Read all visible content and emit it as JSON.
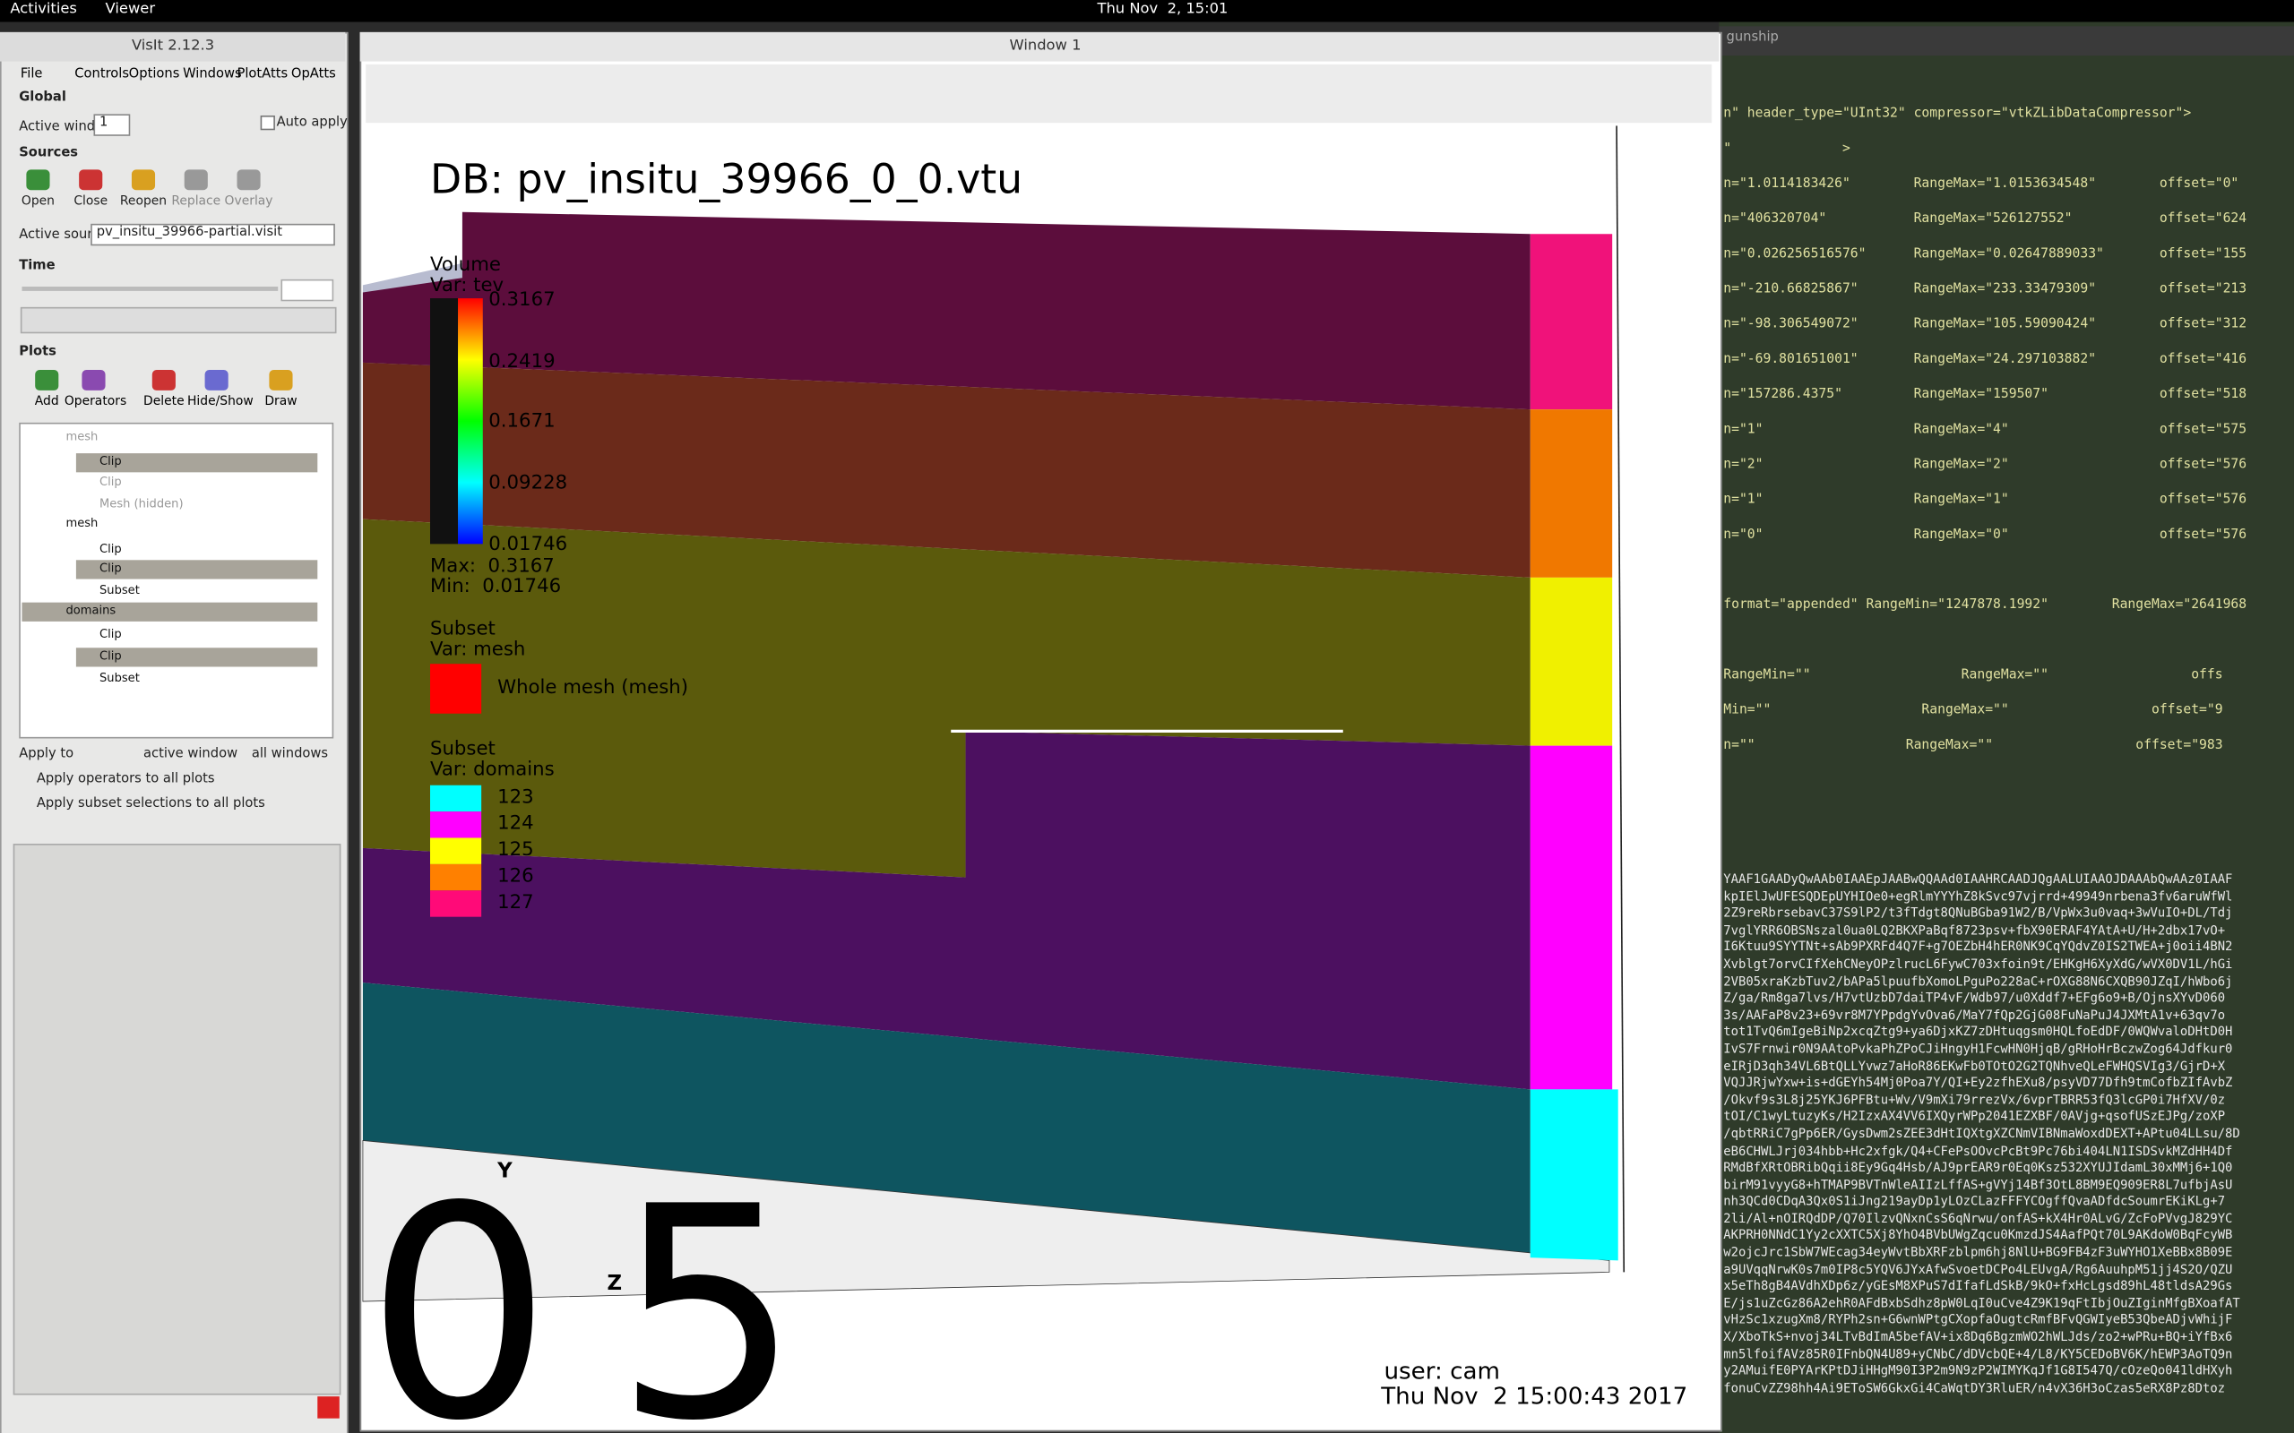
{
  "topbar": {
    "activities": "Activities",
    "app_menu": "Viewer",
    "clock": "Thu Nov  2, 15:01"
  },
  "control_panel": {
    "title": "VisIt 2.12.3",
    "menu": [
      "File",
      "Controls",
      "Options",
      "Windows",
      "PlotAtts",
      "OpAtts"
    ],
    "global_label": "Global",
    "active_window_label": "Active window",
    "active_window_value": "1",
    "auto_apply": "Auto apply",
    "sources_label": "Sources",
    "source_buttons": [
      "Open",
      "Close",
      "Reopen",
      "Replace",
      "Overlay"
    ],
    "active_source_label": "Active source",
    "active_source": "pv_insitu_39966-partial.visit",
    "time_label": "Time",
    "plots_label": "Plots",
    "plot_buttons": [
      "Add",
      "Operators",
      "Delete",
      "Hide/Show",
      "Draw"
    ],
    "plot_tree": [
      "mesh",
      "Clip",
      "Clip",
      "Mesh (hidden)",
      "mesh",
      "Clip",
      "Clip",
      "Subset",
      "domains",
      "Clip",
      "Clip",
      "Subset"
    ],
    "apply_to": "Apply to",
    "active_window": "active window",
    "all_windows": "all windows",
    "apply_ops": "Apply operators to all plots",
    "apply_subset": "Apply subset selections to all plots"
  },
  "viz_window": {
    "title": "Window 1",
    "db": "DB: pv_insitu_39966_0_0.vtu",
    "volume_legend": {
      "title": "Volume",
      "var": "Var: tev",
      "ticks": [
        "0.3167",
        "0.2419",
        "0.1671",
        "0.09228",
        "0.01746"
      ],
      "max": "Max:  0.3167",
      "min": "Min:  0.01746"
    },
    "mesh_legend": {
      "title": "Subset",
      "var": "Var: mesh",
      "item": "Whole mesh (mesh)"
    },
    "domain_legend": {
      "title": "Subset",
      "var": "Var: domains",
      "items": [
        "123",
        "124",
        "125",
        "126",
        "127"
      ],
      "colors": [
        "#00ffff",
        "#ff00ff",
        "#ffff00",
        "#ff8000",
        "#ff0a78"
      ]
    },
    "axis_y": "Y",
    "axis_z": "Z",
    "big_digits": [
      "0",
      "5"
    ],
    "user": "user: cam",
    "date": "Thu Nov  2 15:00:43 2017"
  },
  "terminal": {
    "title": "gunship",
    "lines": [
      "n\" header_type=\"UInt32\" compressor=\"vtkZLibDataCompressor\">",
      "\"              >",
      "n=\"1.0114183426\"        RangeMax=\"1.0153634548\"        offset=\"0\"",
      "n=\"406320704\"           RangeMax=\"526127552\"           offset=\"624",
      "n=\"0.026256516576\"      RangeMax=\"0.02647889033\"       offset=\"155",
      "n=\"-210.66825867\"       RangeMax=\"233.33479309\"        offset=\"213",
      "n=\"-98.306549072\"       RangeMax=\"105.59090424\"        offset=\"312",
      "n=\"-69.801651001\"       RangeMax=\"24.297103882\"        offset=\"416",
      "n=\"157286.4375\"         RangeMax=\"159507\"              offset=\"518",
      "n=\"1\"                   RangeMax=\"4\"                   offset=\"575",
      "n=\"2\"                   RangeMax=\"2\"                   offset=\"576",
      "n=\"1\"                   RangeMax=\"1\"                   offset=\"576",
      "n=\"0\"                   RangeMax=\"0\"                   offset=\"576",
      "",
      "format=\"appended\" RangeMin=\"1247878.1992\"        RangeMax=\"2641968",
      "",
      "RangeMin=\"\"                   RangeMax=\"\"                  offs",
      "Min=\"\"                   RangeMax=\"\"                  offset=\"9",
      "n=\"\"                   RangeMax=\"\"                  offset=\"983"
    ],
    "base64": [
      "YAAF1GAADyQwAAb0IAAEpJAABwQQAAd0IAAHRCAADJQgAALUIAAOJDAAAbQwAAz0IAAF",
      "kpIElJwUFESQDEpUYHIOe0+egRlmYYYhZ8kSvc97vjrrd+49949nrbena3fv6aruWfWl",
      "2Z9reRbrsebavC37S9lP2/t3fTdgt8QNuBGba91W2/B/VpWx3u0vaq+3wVuIO+DL/Tdj",
      "7vglYRR6OBSNszal0ua0LQ2BKXPaBqf8723psv+fbX90ERAF4YAtA+U/H+2dbx17vO+",
      "I6Ktuu9SYYTNt+sAb9PXRFd4Q7F+g7OEZbH4hER0NK9CqYQdvZ0IS2TWEA+j0oii4BN2",
      "Xvblgt7orvCIfXehCNeyOPzlrucL6FywC703xfoin9t/EHKgH6XyXdG/wVX0DV1L/hGi",
      "2VB05xraKzbTuv2/bAPa5lpuufbXomoLPguPo228aC+rOXG88N6CXQB90JZqI/hWbo6j",
      "Z/ga/Rm8ga7lvs/H7vtUzbD7daiTP4vF/Wdb97/u0Xddf7+EFg6o9+B/OjnsXYvD060",
      "3s/AAFaP8v23+69vr8M7YPpdgYvOva6/MaY7fQp2GjG08FuNaPuJ4JXMtA1v+63qv7o",
      "tot1TvQ6mIgeBiNp2xcqZtg9+ya6DjxKZ7zDHtuqgsm0HQLfoEdDF/0WQWvaloDHtD0H",
      "IvS7Frnwir0N9AAtoPvkaPhZPoCJiHngyH1FcwHN0HjqB/gRHoHrBczwZog64Jdfkur0",
      "eIRjD3qh34VL6BtQLLYvwz7aHoR86EKwFb0TOtO2G2TQNhveQLeFWHQSVIg3/GjrD+X",
      "VQJJRjwYxw+is+dGEYh54Mj0Poa7Y/QI+Ey2zfhEXu8/psyVD77Dfh9tmCofbZIfAvbZ",
      "/Okvf9s3L8j25YKJ6PFBtu+Wv/V9mXi79rrezVx/6vprTBRR53fQ3lcGP0i7HfXV/0z",
      "tOI/C1wyLtuzyKs/H2IzxAX4VV6IXQyrWPp2041EZXBF/0AVjg+qsofUSzEJPg/zoXP",
      "/qbtRRiC7gPp6ER/GysDwm2sZEE3dHtIQXtgXZCNmVIBNmaWoxdDEXT+APtu04LLsu/8D",
      "eB6CHWLJrj034hbb+Hc2xfgk/Q4+CFePsOOvcPcBt9Pc76bi404LN1ISDSvkMZdHH4Df",
      "RMdBfXRtOBRibQqii8Ey9Gq4Hsb/AJ9prEAR9r0Eq0Ksz532XYUJIdamL30xMMj6+1Q0",
      "birM91vyyG8+hTMAP9BVTnWleAIIzLffAS+gVYj14Bf3OtL8BM9EQ909ER8L7ufbjAsU",
      "nh3QCd0CDqA3Qx0S1iJng219ayDp1yLOzCLazFFFYCOgffQvaADfdcSoumrEKiKLg+7",
      "2li/Al+nOIRQdDP/Q70IlzvQNxnCsS6qNrwu/onfAS+kX4Hr0ALvG/ZcFoPVvgJ829YC",
      "AKPRH0NNdC1Yy2cXXTC5Xj8YhO4BVbUWgZqcu0KmzdJS4AafPQt70L9AKdoW0BqFcyWB",
      "w2ojcJrc1SbW7WEcag34eyWvtBbXRFzblpm6hj8NlU+BG9FB4zF3uWYHO1XeBBx8B09E",
      "a9UVqqNrwK0s7m0IP8c5YQV6JYxAfwSvoetDCPo4LEUvgA/Rg6AuuhpM51jj4S2O/QZU",
      "x5eTh8gB4AVdhXDp6z/yGEsM8XPuS7dIfafLdSkB/9kO+fxHcLgsd89hL48tldsA29Gs",
      "E/js1uZcGz86A2ehR0AFdBxbSdhz8pW0LqI0uCve4Z9K19qFtIbjOuZIginMfgBXoafAT",
      "vHzSc1xzugXm8/RYPh2sn+G6wnWPtgCXopfaOugtcRmfBFvQGWIyeB53QbeADjvWhijF",
      "X/XboTkS+nvoj34LTvBdImA5befAV+ix8Dq6BgzmWO2hWLJds/zo2+wPRu+BQ+iYfBx6",
      "mn5lfoifAVz85R0IFnbQN4U89+yCNbC/dDVcbQE+4/L8/KY5CEDoBV6K/hEWP3AoTQ9n",
      "y2AMuifE0PYArKPtDJiHHgM90I3P2m9N9zP2WIMYKqJf1G8I547Q/cOzeQo041ldHXyh",
      "fonuCvZZ98hh4Ai9EToSW6GkxGi4CaWqtDY3RluER/n4vX36H3oCzas5eRX8Pz8Dtoz"
    ]
  }
}
